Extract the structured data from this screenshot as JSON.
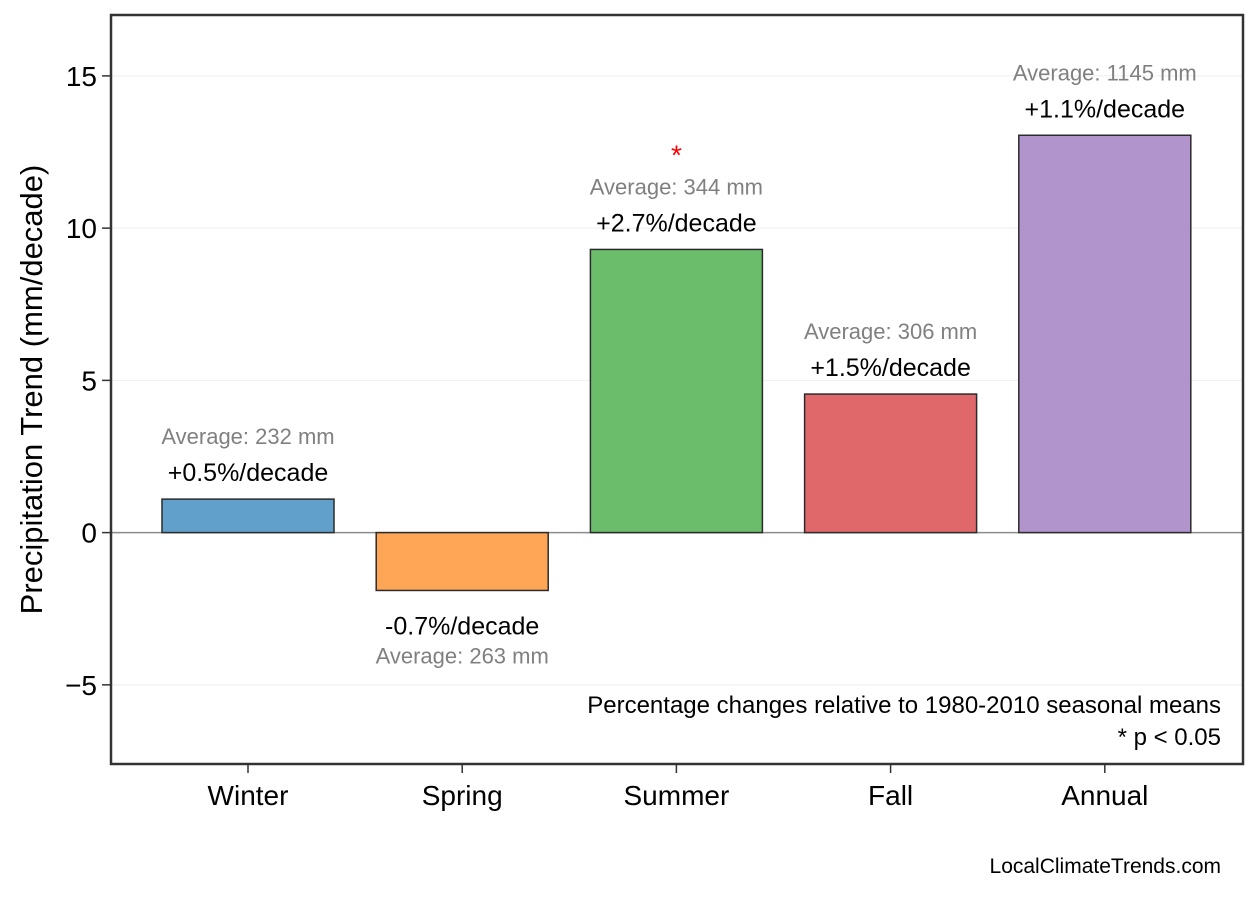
{
  "chart_data": {
    "type": "bar",
    "categories": [
      "Winter",
      "Spring",
      "Summer",
      "Fall",
      "Annual"
    ],
    "values": [
      1.1,
      -1.9,
      9.3,
      4.55,
      13.05
    ],
    "colors": [
      "#62a0cc",
      "#fea655",
      "#6bbd6b",
      "#e0676a",
      "#b294cd"
    ],
    "bar_edge_color": "#2b2b2b",
    "pct_labels": [
      "+0.5%/decade",
      "-0.7%/decade",
      "+2.7%/decade",
      "+1.5%/decade",
      "+1.1%/decade"
    ],
    "avg_labels": [
      "Average: 232 mm",
      "Average: 263 mm",
      "Average: 344 mm",
      "Average: 306 mm",
      "Average: 1145 mm"
    ],
    "significant": [
      false,
      false,
      true,
      false,
      false
    ],
    "significance_marker": "*",
    "xlabel": "",
    "ylabel": "Precipitation Trend (mm/decade)",
    "ylim": [
      -7.6,
      17.0
    ],
    "yticks": [
      -5,
      0,
      5,
      10,
      15
    ],
    "ytick_labels": [
      "−5",
      "0",
      "5",
      "10",
      "15"
    ],
    "grid": "horizontal",
    "zero_line": true,
    "note_lines": [
      "Percentage changes relative to 1980-2010 seasonal means",
      "* p < 0.05"
    ]
  },
  "credit": "LocalClimateTrends.com"
}
